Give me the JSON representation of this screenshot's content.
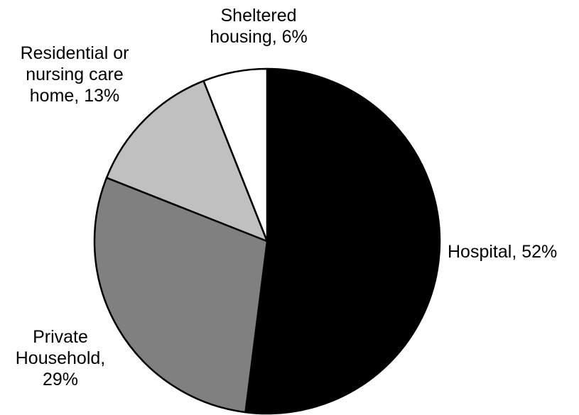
{
  "chart_data": {
    "type": "pie",
    "title": "",
    "start_angle_deg": 0,
    "direction": "clockwise",
    "slices": [
      {
        "name": "Hospital",
        "value": 52,
        "color": "#000000",
        "label_lines": [
          "Hospital, 52%"
        ]
      },
      {
        "name": "Private Household",
        "value": 29,
        "color": "#808080",
        "label_lines": [
          "Private",
          "Household,",
          "29%"
        ]
      },
      {
        "name": "Residential or nursing care home",
        "value": 13,
        "color": "#c0c0c0",
        "label_lines": [
          "Residential or",
          "nursing care",
          "home, 13%"
        ]
      },
      {
        "name": "Sheltered housing",
        "value": 6,
        "color": "#ffffff",
        "label_lines": [
          "Sheltered",
          "housing, 6%"
        ]
      }
    ]
  }
}
